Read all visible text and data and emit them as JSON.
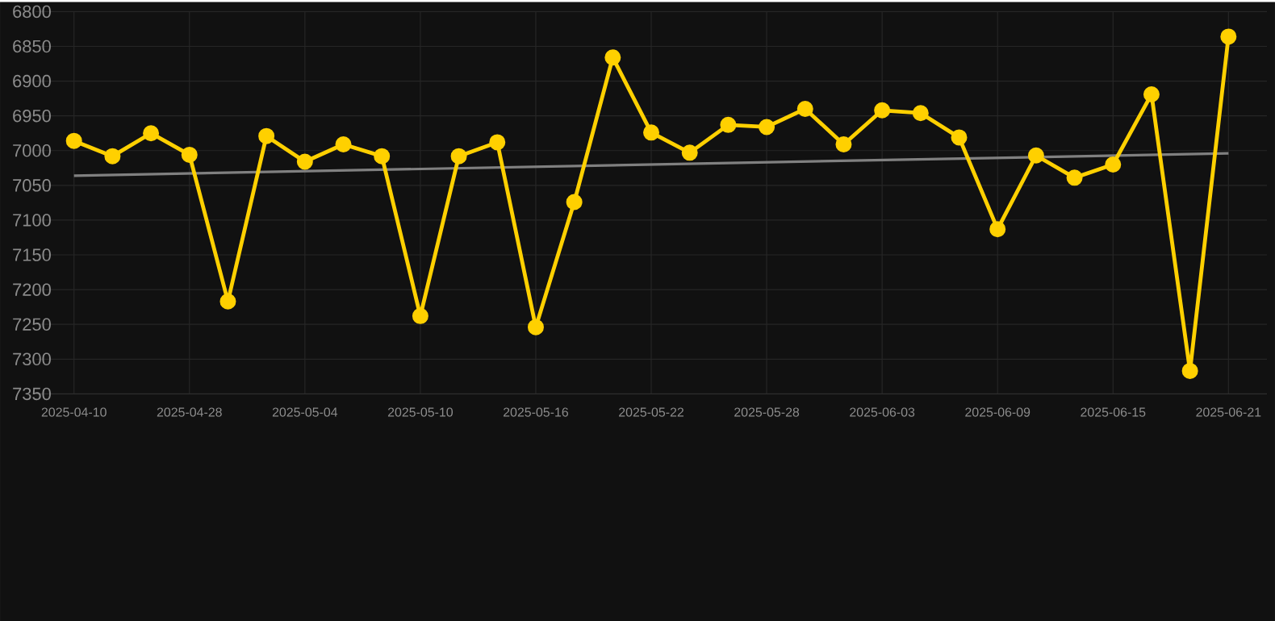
{
  "chart_data": {
    "type": "line",
    "categories": [
      "2025-04-10",
      null,
      null,
      "2025-04-28",
      null,
      null,
      "2025-05-04",
      null,
      null,
      "2025-05-10",
      null,
      null,
      "2025-05-16",
      null,
      null,
      "2025-05-22",
      null,
      null,
      "2025-05-28",
      null,
      null,
      "2025-06-03",
      null,
      null,
      "2025-06-09",
      null,
      null,
      "2025-06-15",
      null,
      null,
      "2025-06-21"
    ],
    "series": [
      {
        "color": "#ffd000",
        "marker": "circle",
        "values": [
          6986,
          7008,
          6975,
          7006,
          7217,
          6979,
          7016,
          6991,
          7008,
          7238,
          7008,
          6988,
          7254,
          7074,
          6866,
          6974,
          7003,
          6963,
          6966,
          6940,
          6991,
          6942,
          6946,
          6981,
          7113,
          7007,
          7039,
          7020,
          6919,
          7317,
          6836
        ]
      },
      {
        "color": "#808080",
        "marker": "none",
        "values": [
          7036,
          null,
          null,
          null,
          null,
          null,
          null,
          null,
          null,
          null,
          null,
          null,
          null,
          null,
          null,
          null,
          null,
          null,
          null,
          null,
          null,
          null,
          null,
          null,
          null,
          null,
          null,
          null,
          null,
          null,
          7004
        ]
      }
    ],
    "ylim": [
      7350,
      6800
    ],
    "yticks": [
      6800,
      6850,
      6900,
      6950,
      7000,
      7050,
      7100,
      7150,
      7200,
      7250,
      7300,
      7350
    ],
    "grid": true
  }
}
